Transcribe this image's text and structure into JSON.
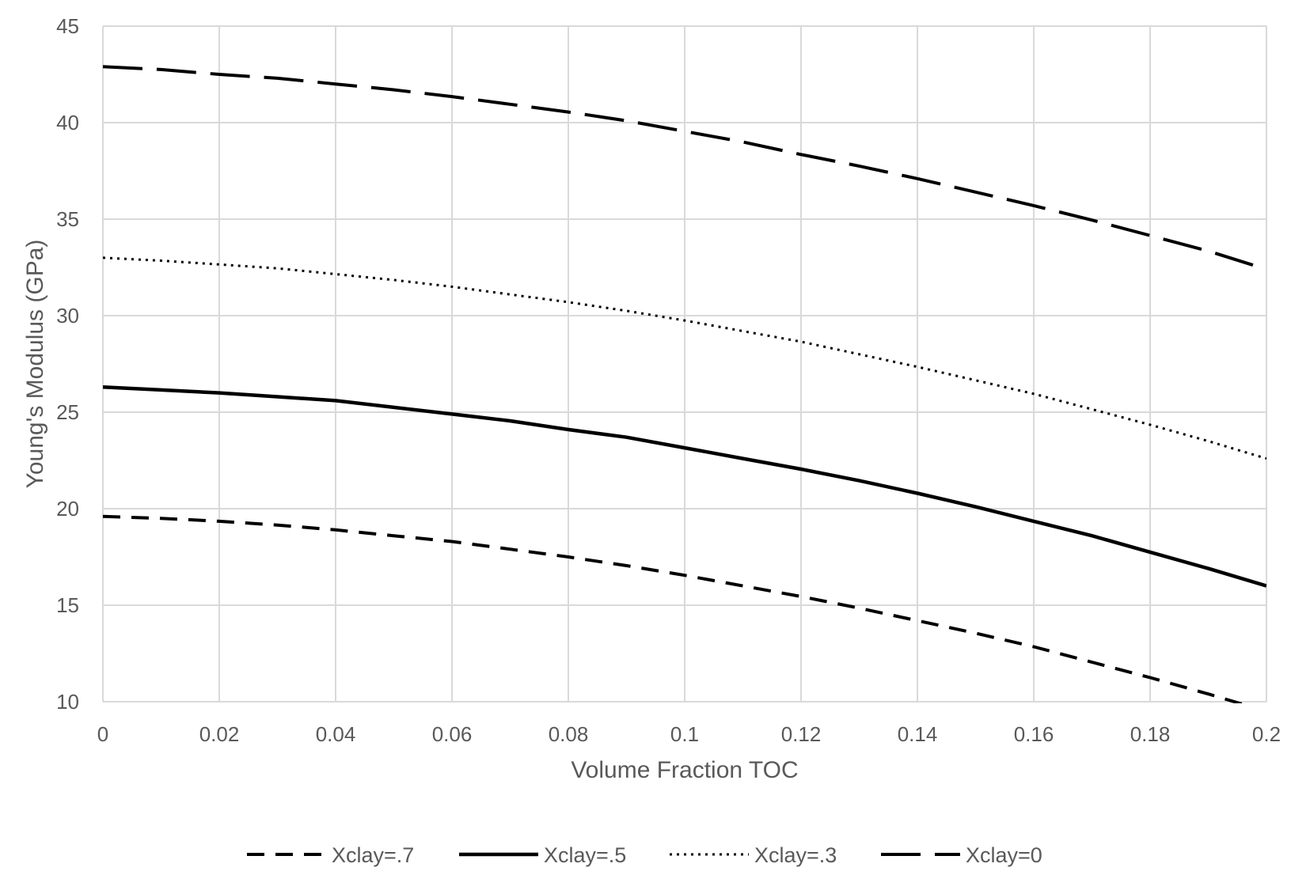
{
  "chart_data": {
    "type": "line",
    "title": "",
    "xlabel": "Volume Fraction TOC",
    "ylabel": "Young's Modulus (GPa)",
    "xlim": [
      0,
      0.2
    ],
    "ylim": [
      10,
      45
    ],
    "x_ticks": [
      0,
      0.02,
      0.04,
      0.06,
      0.08,
      0.1,
      0.12,
      0.14,
      0.16,
      0.18,
      0.2
    ],
    "x_tick_labels": [
      "0",
      "0.02",
      "0.04",
      "0.06",
      "0.08",
      "0.1",
      "0.12",
      "0.14",
      "0.16",
      "0.18",
      "0.2"
    ],
    "y_ticks": [
      10,
      15,
      20,
      25,
      30,
      35,
      40,
      45
    ],
    "y_tick_labels": [
      "10",
      "15",
      "20",
      "25",
      "30",
      "35",
      "40",
      "45"
    ],
    "grid": true,
    "legend_position": "bottom",
    "x": [
      0,
      0.01,
      0.02,
      0.03,
      0.04,
      0.05,
      0.06,
      0.07,
      0.08,
      0.09,
      0.1,
      0.11,
      0.12,
      0.13,
      0.14,
      0.15,
      0.16,
      0.17,
      0.18,
      0.19,
      0.2
    ],
    "series": [
      {
        "name": "Xclay=.7",
        "line_style": "dashed",
        "color": "#000000",
        "values": [
          19.6,
          19.5,
          19.35,
          19.15,
          18.9,
          18.6,
          18.3,
          17.9,
          17.5,
          17.05,
          16.55,
          16.0,
          15.45,
          14.85,
          14.2,
          13.55,
          12.85,
          12.05,
          11.25,
          10.4,
          9.5
        ]
      },
      {
        "name": "Xclay=.5",
        "line_style": "solid",
        "color": "#000000",
        "values": [
          26.3,
          26.15,
          26.0,
          25.8,
          25.6,
          25.25,
          24.9,
          24.55,
          24.1,
          23.7,
          23.15,
          22.6,
          22.05,
          21.45,
          20.8,
          20.1,
          19.35,
          18.6,
          17.75,
          16.9,
          16.0
        ]
      },
      {
        "name": "Xclay=.3",
        "line_style": "dotted",
        "color": "#000000",
        "values": [
          33.0,
          32.85,
          32.65,
          32.45,
          32.15,
          31.85,
          31.5,
          31.1,
          30.7,
          30.25,
          29.75,
          29.2,
          28.65,
          28.0,
          27.35,
          26.65,
          25.95,
          25.15,
          24.35,
          23.5,
          22.6
        ]
      },
      {
        "name": "Xclay=0",
        "line_style": "long-dash",
        "color": "#000000",
        "values": [
          42.9,
          42.75,
          42.5,
          42.3,
          42.0,
          41.7,
          41.35,
          40.95,
          40.55,
          40.1,
          39.55,
          39.0,
          38.35,
          37.75,
          37.1,
          36.4,
          35.7,
          34.95,
          34.15,
          33.35,
          32.4
        ]
      }
    ]
  }
}
